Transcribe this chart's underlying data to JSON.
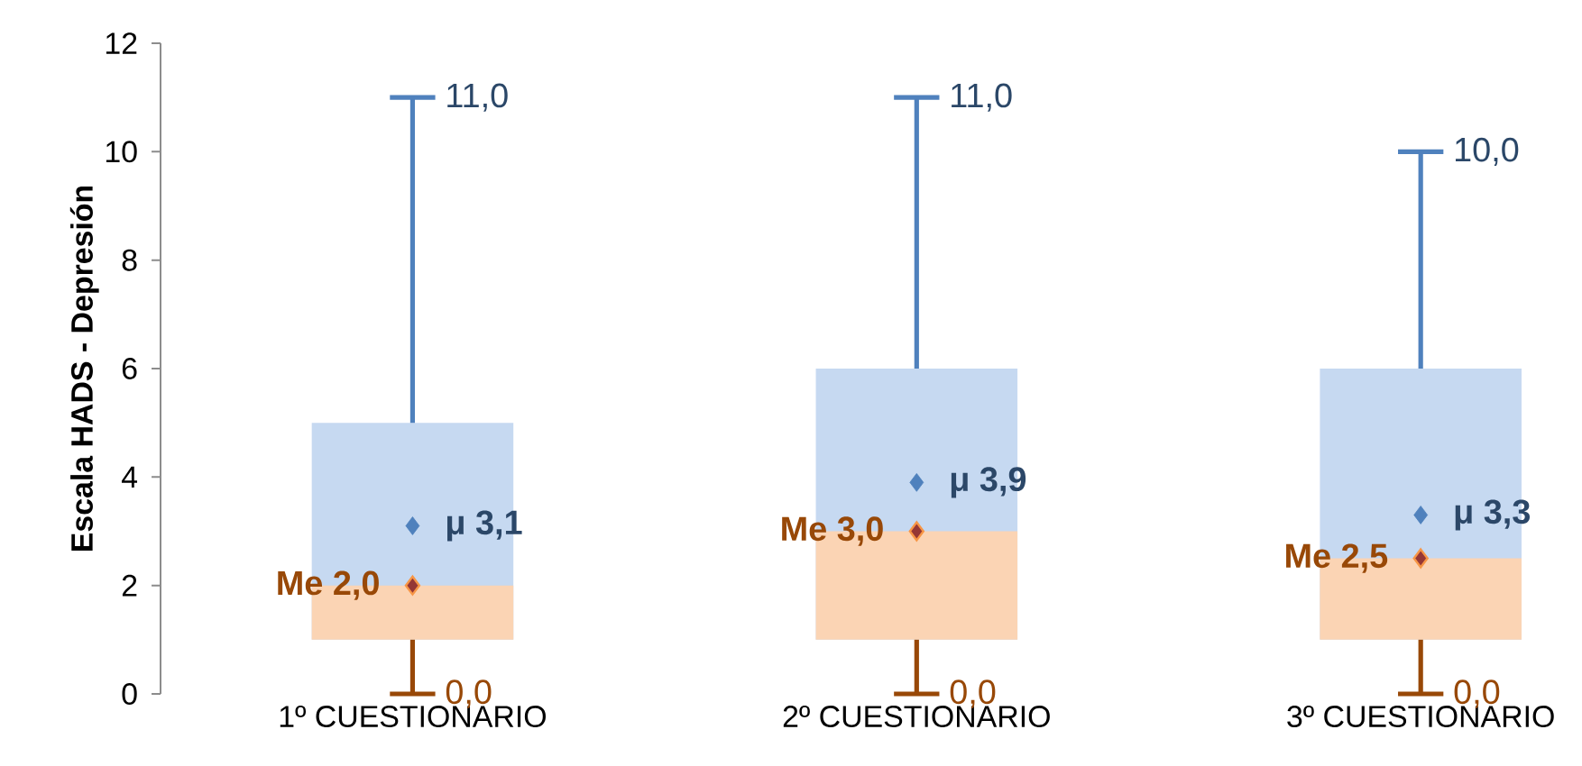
{
  "chart_data": {
    "type": "box",
    "ylabel": "Escala HADS - Depresión",
    "categories": [
      "1º CUESTIONARIO",
      "2º CUESTIONARIO",
      "3º CUESTIONARIO"
    ],
    "series": [
      {
        "color": "#c6d9f1",
        "boxes": [
          {
            "low": 0,
            "q1": 1,
            "median": 2,
            "q3": 5,
            "high": 11,
            "mean": 3.1
          },
          {
            "low": 0,
            "q1": 1,
            "median": 3,
            "q3": 6,
            "high": 11,
            "mean": 3.9
          },
          {
            "low": 0,
            "q1": 1,
            "median": 2.5,
            "q3": 6,
            "high": 10,
            "mean": 3.3
          }
        ]
      },
      {
        "type": "scatter",
        "color": "#953735",
        "x": [
          "1º CUESTIONARIO",
          "2º CUESTIONARIO",
          "3º CUESTIONARIO"
        ],
        "values": [
          2,
          3,
          2.5
        ]
      }
    ],
    "ylim": [
      0,
      12
    ],
    "yticks": [
      0,
      2,
      4,
      6,
      8,
      10,
      12
    ],
    "marker": "diamond",
    "annotations": [
      "11,0",
      "μ 3,1",
      "Me 2,0",
      "0,0",
      "11,0",
      "μ 3,9",
      "Me 3,0",
      "0,0",
      "10,0",
      "μ 3,3",
      "Me 2,5",
      "0,0"
    ]
  }
}
